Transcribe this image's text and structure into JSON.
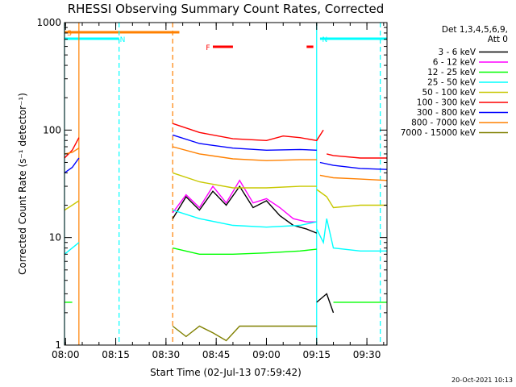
{
  "chart_data": {
    "type": "line",
    "title": "RHESSI Observing Summary Count Rates, Corrected",
    "xlabel": "Start Time (02-Jul-13 07:59:42)",
    "ylabel": "Corrected Count Rate (s⁻¹ detector⁻¹)",
    "xscale": "time",
    "yscale": "log",
    "xlim": [
      "07:59:42",
      "09:36:00"
    ],
    "ylim": [
      1,
      1000
    ],
    "x_ticks": [
      "08:00",
      "08:15",
      "08:30",
      "08:45",
      "09:00",
      "09:15",
      "09:30"
    ],
    "y_ticks": [
      "1",
      "10",
      "100",
      "1000"
    ],
    "legend_header": [
      "Det 1,3,4,5,6,9,",
      "Att 0"
    ],
    "legend_position": "right",
    "series": [
      {
        "name": "3 - 6 keV",
        "color": "#000000",
        "segments": [
          {
            "x": [
              "08:32",
              "08:36",
              "08:40",
              "08:44",
              "08:48",
              "08:52",
              "08:56",
              "09:00",
              "09:04",
              "09:08",
              "09:12",
              "09:15"
            ],
            "y": [
              15,
              24,
              18,
              27,
              20,
              30,
              19,
              22,
              16,
              13,
              12,
              11
            ]
          },
          {
            "x": [
              "09:15",
              "09:18",
              "09:20"
            ],
            "y": [
              2.5,
              3,
              2
            ]
          }
        ]
      },
      {
        "name": "6 - 12 keV",
        "color": "#ff00ff",
        "segments": [
          {
            "x": [
              "08:32",
              "08:36",
              "08:40",
              "08:44",
              "08:48",
              "08:52",
              "08:56",
              "09:00",
              "09:04",
              "09:08",
              "09:12",
              "09:15"
            ],
            "y": [
              17,
              25,
              19,
              30,
              21,
              34,
              21,
              23,
              19,
              15,
              14,
              14
            ]
          }
        ]
      },
      {
        "name": "12 - 25 keV",
        "color": "#00ff00",
        "segments": [
          {
            "x": [
              "07:59:42",
              "08:02"
            ],
            "y": [
              2.5,
              2.5
            ]
          },
          {
            "x": [
              "08:32",
              "08:40",
              "08:50",
              "09:00",
              "09:10",
              "09:15"
            ],
            "y": [
              8,
              7,
              7,
              7.2,
              7.5,
              7.8
            ]
          },
          {
            "x": [
              "09:20",
              "09:28",
              "09:36"
            ],
            "y": [
              2.5,
              2.5,
              2.5
            ]
          }
        ]
      },
      {
        "name": "25 - 50 keV",
        "color": "#00ffff",
        "segments": [
          {
            "x": [
              "07:59:42",
              "08:02",
              "08:04"
            ],
            "y": [
              7,
              8,
              9
            ]
          },
          {
            "x": [
              "08:32",
              "08:40",
              "08:50",
              "09:00",
              "09:10",
              "09:15"
            ],
            "y": [
              18,
              15,
              13,
              12.5,
              13,
              14
            ]
          },
          {
            "x": [
              "09:15",
              "09:17",
              "09:18",
              "09:20",
              "09:28",
              "09:36"
            ],
            "y": [
              12,
              9,
              15,
              8,
              7.5,
              7.5
            ]
          }
        ]
      },
      {
        "name": "50 - 100 keV",
        "color": "#c8c800",
        "segments": [
          {
            "x": [
              "07:59:42",
              "08:02",
              "08:04"
            ],
            "y": [
              18,
              20,
              22
            ]
          },
          {
            "x": [
              "08:32",
              "08:40",
              "08:50",
              "09:00",
              "09:10",
              "09:15"
            ],
            "y": [
              40,
              33,
              29,
              29,
              30,
              30
            ]
          },
          {
            "x": [
              "09:15",
              "09:18",
              "09:20",
              "09:28",
              "09:36"
            ],
            "y": [
              28,
              24,
              19,
              20,
              20
            ]
          }
        ]
      },
      {
        "name": "100 - 300 keV",
        "color": "#ff0000",
        "segments": [
          {
            "x": [
              "07:59:42",
              "08:02",
              "08:04"
            ],
            "y": [
              55,
              65,
              85
            ]
          },
          {
            "x": [
              "08:32",
              "08:40",
              "08:50",
              "09:00",
              "09:05",
              "09:10",
              "09:15",
              "09:17"
            ],
            "y": [
              115,
              95,
              83,
              80,
              88,
              85,
              80,
              100
            ]
          },
          {
            "x": [
              "09:18",
              "09:20",
              "09:28",
              "09:36"
            ],
            "y": [
              60,
              58,
              55,
              55
            ]
          }
        ]
      },
      {
        "name": "300 - 800 keV",
        "color": "#0000ff",
        "segments": [
          {
            "x": [
              "07:59:42",
              "08:02",
              "08:04"
            ],
            "y": [
              40,
              45,
              55
            ]
          },
          {
            "x": [
              "08:32",
              "08:40",
              "08:50",
              "09:00",
              "09:10",
              "09:15"
            ],
            "y": [
              90,
              75,
              68,
              65,
              66,
              65
            ]
          },
          {
            "x": [
              "09:16",
              "09:20",
              "09:28",
              "09:36"
            ],
            "y": [
              50,
              47,
              44,
              43
            ]
          }
        ]
      },
      {
        "name": "800 - 7000 keV",
        "color": "#ff8000",
        "segments": [
          {
            "x": [
              "07:59:42",
              "08:02",
              "08:04"
            ],
            "y": [
              60,
              62,
              68
            ]
          },
          {
            "x": [
              "08:32",
              "08:40",
              "08:50",
              "09:00",
              "09:10",
              "09:15"
            ],
            "y": [
              70,
              60,
              54,
              52,
              53,
              53
            ]
          },
          {
            "x": [
              "09:16",
              "09:20",
              "09:28",
              "09:36"
            ],
            "y": [
              38,
              36,
              35,
              34
            ]
          }
        ]
      },
      {
        "name": "7000 - 15000 keV",
        "color": "#808000",
        "segments": [
          {
            "x": [
              "08:32",
              "08:36",
              "08:40",
              "08:44",
              "08:48",
              "08:52",
              "08:56",
              "09:00",
              "09:04",
              "09:08",
              "09:12",
              "09:15"
            ],
            "y": [
              1.5,
              1.2,
              1.5,
              1.3,
              1.1,
              1.5,
              1.5,
              1.5,
              1.5,
              1.5,
              1.5,
              1.5
            ]
          }
        ]
      }
    ],
    "flags": [
      {
        "label": "S",
        "color": "#ff8000",
        "start": "07:59:42",
        "end": "08:34"
      },
      {
        "label": "N",
        "color": "#00ffff",
        "start": "07:59:42",
        "end": "08:16"
      },
      {
        "label": "N",
        "color": "#00ffff",
        "start": "09:16",
        "end": "09:36"
      },
      {
        "label": "F",
        "color": "#ff0000",
        "start": "08:44",
        "end": "08:50"
      },
      {
        "label": "",
        "color": "#ff0000",
        "start": "09:12",
        "end": "09:14"
      }
    ],
    "vlines": [
      {
        "x": "07:59:42",
        "color": "#00ffff",
        "style": "solid"
      },
      {
        "x": "08:04",
        "color": "#ff8000",
        "style": "solid"
      },
      {
        "x": "08:16",
        "color": "#00ffff",
        "style": "dashed"
      },
      {
        "x": "08:32",
        "color": "#ff8000",
        "style": "dashed"
      },
      {
        "x": "09:15",
        "color": "#00ffff",
        "style": "solid"
      },
      {
        "x": "09:34",
        "color": "#00ffff",
        "style": "dashed"
      }
    ]
  },
  "footer_date": "20-Oct-2021 10:13"
}
